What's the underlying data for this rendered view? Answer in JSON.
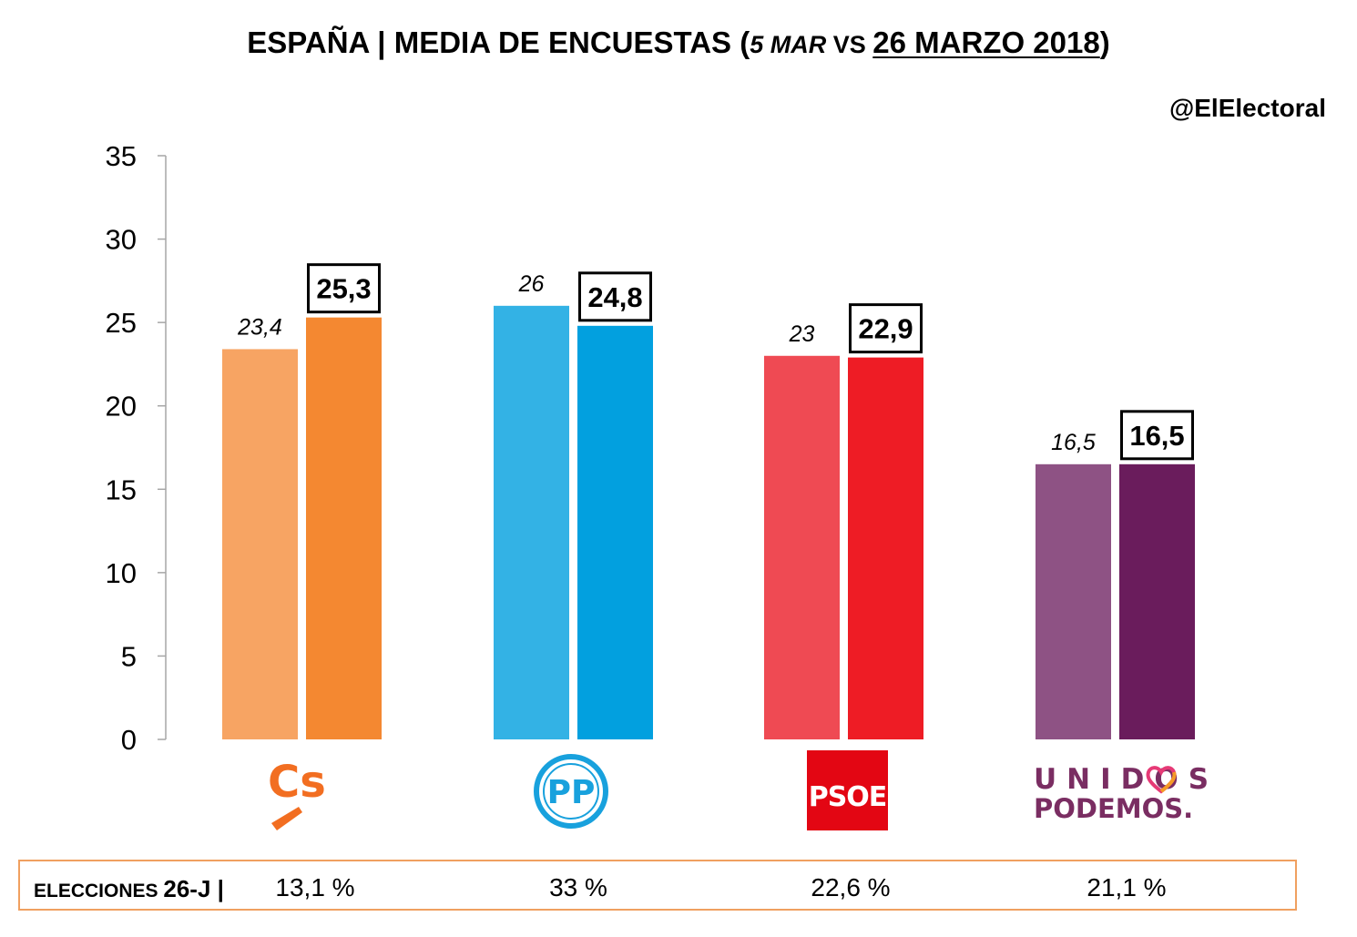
{
  "header": {
    "title_main": "ESPAÑA | MEDIA DE ENCUESTAS (",
    "title_date1": "5 MAR",
    "title_vs": " VS ",
    "title_date2": "26 MARZO 2018",
    "title_close": ")",
    "handle": "@ElElectoral"
  },
  "chart_data": {
    "type": "bar",
    "categories": [
      "Cs",
      "PP",
      "PSOE",
      "Unidos Podemos"
    ],
    "series": [
      {
        "name": "5 MAR",
        "values": [
          23.4,
          26,
          23,
          16.5
        ],
        "labels": [
          "23,4",
          "26",
          "23",
          "16,5"
        ],
        "colors": [
          "#f7a463",
          "#33b2e5",
          "#ef4a53",
          "#8e5284"
        ]
      },
      {
        "name": "26 MARZO 2018",
        "values": [
          25.3,
          24.8,
          22.9,
          16.5
        ],
        "labels": [
          "25,3",
          "24,8",
          "22,9",
          "16,5"
        ],
        "colors": [
          "#f48831",
          "#02a0df",
          "#ee1c25",
          "#6a1c5c"
        ]
      }
    ],
    "ylim": [
      0,
      35
    ],
    "yticks": [
      "0",
      "5",
      "10",
      "15",
      "20",
      "25",
      "30",
      "35"
    ],
    "title": "ESPAÑA | MEDIA DE ENCUESTAS (5 MAR VS 26 MARZO 2018)",
    "xlabel": "",
    "ylabel": "",
    "grid": false,
    "legend": "none"
  },
  "logos": {
    "cs": {
      "text": "Cs",
      "color": "#f26e21",
      "icon": "cs-logo"
    },
    "pp": {
      "text": "PP",
      "color": "#18a1dd",
      "icon": "pp-logo"
    },
    "psoe": {
      "text": "PSOE",
      "color": "#e30613",
      "icon": "psoe-logo"
    },
    "podemos": {
      "line1": "UNIDOS",
      "line2": "PODEMOS.",
      "color": "#7a2d62",
      "heart_colors": [
        "#e63a76",
        "#f59b26",
        "#3aaa5a",
        "#7a2d62"
      ],
      "icon": "podemos-heart-logo"
    }
  },
  "results": {
    "label_prefix": "ELECCIONES ",
    "label_big": "26-J",
    "label_sep": " |",
    "values": [
      "13,1 %",
      "33 %",
      "22,6 %",
      "21,1 %"
    ],
    "border_color": "#f0a060"
  }
}
